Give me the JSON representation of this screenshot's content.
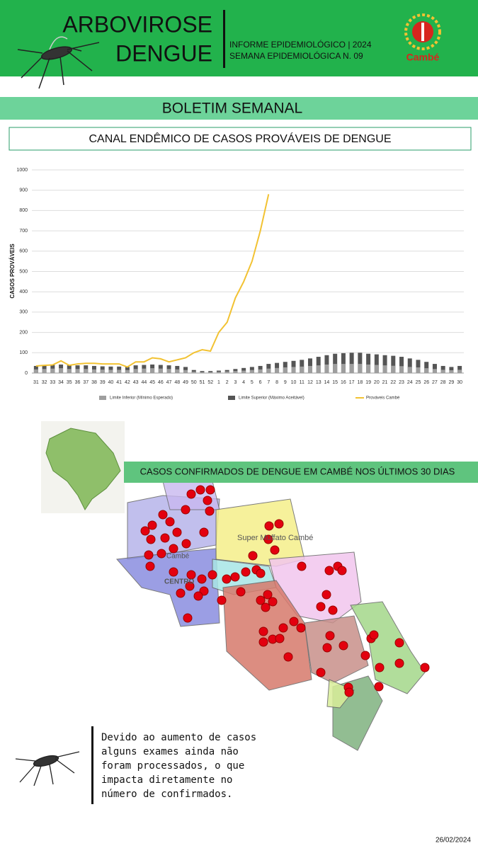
{
  "header": {
    "title_line1": "ARBOVIROSE",
    "title_line2": "DENGUE",
    "info_line1": "INFORME EPIDEMIOLÓGICO | 2024",
    "info_line2": "SEMANA EPIDEMIOLÓGICA  N. 09",
    "logo": "Cambé"
  },
  "banner": "BOLETIM SEMANAL",
  "chart_data": {
    "type": "bar-line",
    "title": "CANAL ENDÊMICO DE CASOS PROVÁVEIS DE DENGUE",
    "y_label": "CASOS PROVÁVEIS",
    "categories": [
      "31",
      "32",
      "33",
      "34",
      "35",
      "36",
      "37",
      "38",
      "39",
      "40",
      "41",
      "42",
      "43",
      "44",
      "45",
      "46",
      "47",
      "48",
      "49",
      "50",
      "51",
      "52",
      "1",
      "2",
      "3",
      "4",
      "5",
      "6",
      "7",
      "8",
      "9",
      "10",
      "11",
      "12",
      "13",
      "14",
      "15",
      "16",
      "17",
      "18",
      "19",
      "20",
      "21",
      "22",
      "23",
      "24",
      "25",
      "26",
      "27",
      "28",
      "29",
      "30"
    ],
    "series": [
      {
        "name": "Limite Inferior (Mínimo Esperado)",
        "color": "#9e9e9e",
        "kind": "bar",
        "values": [
          18,
          20,
          22,
          24,
          20,
          20,
          20,
          18,
          17,
          16,
          16,
          15,
          20,
          22,
          24,
          22,
          20,
          18,
          15,
          7,
          5,
          5,
          6,
          8,
          10,
          12,
          15,
          18,
          22,
          25,
          28,
          30,
          32,
          35,
          38,
          42,
          45,
          45,
          45,
          45,
          42,
          40,
          38,
          36,
          34,
          30,
          28,
          24,
          20,
          16,
          14,
          16
        ]
      },
      {
        "name": "Limite Superior (Máximo Aceitável)",
        "color": "#555555",
        "kind": "bar",
        "values": [
          35,
          38,
          40,
          42,
          38,
          38,
          38,
          35,
          33,
          32,
          32,
          30,
          38,
          40,
          42,
          40,
          38,
          35,
          30,
          15,
          10,
          10,
          12,
          15,
          20,
          25,
          30,
          35,
          45,
          50,
          55,
          60,
          65,
          72,
          80,
          88,
          95,
          98,
          100,
          100,
          95,
          92,
          88,
          85,
          80,
          72,
          65,
          55,
          45,
          35,
          30,
          35
        ]
      },
      {
        "name": "Prováveis Cambé",
        "color": "#f2c232",
        "kind": "line",
        "values": [
          35,
          38,
          40,
          60,
          38,
          45,
          48,
          48,
          45,
          45,
          45,
          30,
          55,
          55,
          75,
          70,
          55,
          65,
          75,
          100,
          115,
          108,
          200,
          250,
          370,
          450,
          550,
          700,
          880,
          null,
          null,
          null,
          null,
          null,
          null,
          null,
          null,
          null,
          null,
          null,
          null,
          null,
          null,
          null,
          null,
          null,
          null,
          null,
          null,
          null,
          null,
          null
        ]
      }
    ],
    "ylim": [
      0,
      1000
    ],
    "yticks": [
      0,
      100,
      200,
      300,
      400,
      500,
      600,
      700,
      800,
      900,
      1000
    ],
    "grid": true,
    "legend": "bottom"
  },
  "map": {
    "title": "CASOS CONFIRMADOS DE DENGUE EM CAMBÉ NOS ÚLTIMOS 30 DIAS",
    "labels": [
      "Super Muffato Cambé",
      "CENTRO",
      "Cambé"
    ]
  },
  "note": [
    "Devido ao aumento de casos",
    "alguns exames ainda não",
    "foram processados, o que",
    "impacta diretamente no",
    "número de confirmados."
  ],
  "date": "26/02/2024"
}
